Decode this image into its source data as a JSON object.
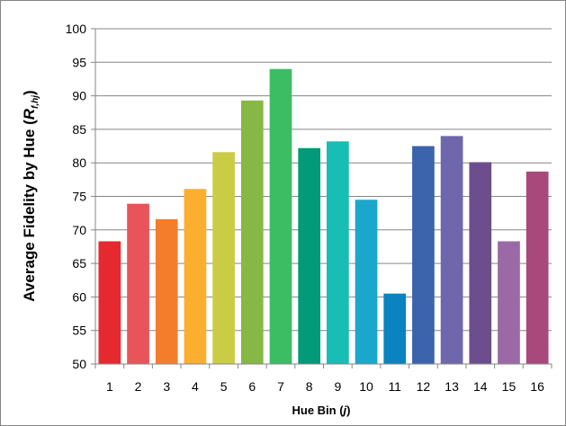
{
  "chart_data": {
    "type": "bar",
    "categories": [
      "1",
      "2",
      "3",
      "4",
      "5",
      "6",
      "7",
      "8",
      "9",
      "10",
      "11",
      "12",
      "13",
      "14",
      "15",
      "16"
    ],
    "values": [
      68.3,
      73.9,
      71.6,
      76.1,
      81.6,
      89.3,
      94.0,
      82.2,
      83.2,
      74.5,
      60.5,
      82.5,
      84.0,
      80.1,
      68.3,
      78.7
    ],
    "colors": [
      "#e5292f",
      "#e9545a",
      "#f47d2c",
      "#fcae2f",
      "#cbcc45",
      "#86b846",
      "#3dbd63",
      "#039a7a",
      "#18bdb3",
      "#1ba7cb",
      "#0a83c0",
      "#3c64ad",
      "#6f67ab",
      "#6d4e8d",
      "#9b6aa6",
      "#a8487b"
    ],
    "xlabel_main": "Hue Bin (",
    "xlabel_var": "j",
    "xlabel_end": ")",
    "ylabel_main": "Average Fidelity by Hue (",
    "ylabel_var": "R",
    "ylabel_sub": "f,hj",
    "ylabel_end": ")",
    "ylim": [
      50,
      100
    ],
    "yticks": [
      50,
      55,
      60,
      65,
      70,
      75,
      80,
      85,
      90,
      95,
      100
    ],
    "grid": true
  }
}
